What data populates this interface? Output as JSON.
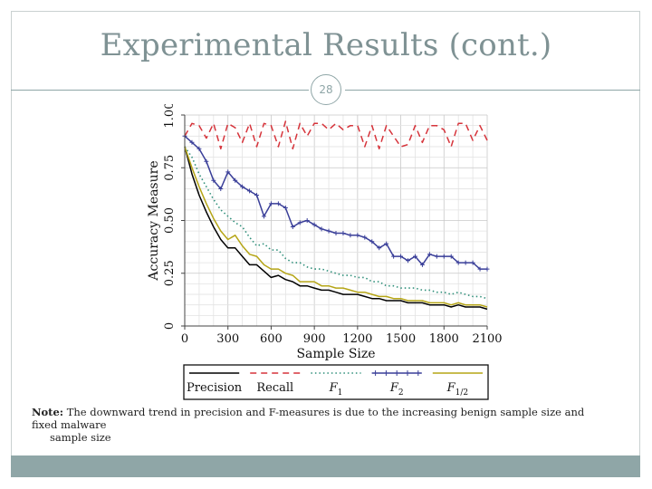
{
  "slide": {
    "title": "Experimental Results (cont.)",
    "number": "28",
    "note_lead": "Note:",
    "note_line1": "The downward trend in precision and F-measures is due to the increasing benign sample size and fixed malware",
    "note_line2": "sample size",
    "accent_color": "#8fa6a7"
  },
  "chart_data": {
    "type": "line",
    "xlabel": "Sample Size",
    "ylabel": "Accuracy Measure",
    "xlim": [
      0,
      2100
    ],
    "ylim": [
      0,
      1.0
    ],
    "xticks": [
      0,
      300,
      600,
      900,
      1200,
      1500,
      1800,
      2100
    ],
    "xtick_labels": [
      "0",
      "300",
      "600",
      "900",
      "1200",
      "1500",
      "1800",
      "2100"
    ],
    "yticks": [
      0,
      0.25,
      0.5,
      0.75,
      1.0
    ],
    "ytick_labels": [
      "0",
      "0.25",
      "0.50",
      "0.75",
      "1.00"
    ],
    "grid": true,
    "legend_position": "bottom",
    "x": [
      0,
      50,
      100,
      150,
      200,
      250,
      300,
      350,
      400,
      450,
      500,
      550,
      600,
      650,
      700,
      750,
      800,
      850,
      900,
      950,
      1000,
      1050,
      1100,
      1150,
      1200,
      1250,
      1300,
      1350,
      1400,
      1450,
      1500,
      1550,
      1600,
      1650,
      1700,
      1750,
      1800,
      1850,
      1900,
      1950,
      2000,
      2050,
      2100
    ],
    "series": [
      {
        "name": "Precision",
        "color": "#000000",
        "style": "solid",
        "values": [
          0.85,
          0.72,
          0.62,
          0.54,
          0.47,
          0.41,
          0.37,
          0.37,
          0.33,
          0.29,
          0.29,
          0.26,
          0.23,
          0.24,
          0.22,
          0.21,
          0.19,
          0.19,
          0.18,
          0.17,
          0.17,
          0.16,
          0.15,
          0.15,
          0.15,
          0.14,
          0.13,
          0.13,
          0.12,
          0.12,
          0.12,
          0.11,
          0.11,
          0.11,
          0.1,
          0.1,
          0.1,
          0.09,
          0.1,
          0.09,
          0.09,
          0.09,
          0.08
        ]
      },
      {
        "name": "Recall",
        "color": "#d6343b",
        "style": "dashed",
        "values": [
          0.9,
          0.96,
          0.95,
          0.89,
          0.96,
          0.84,
          0.96,
          0.94,
          0.87,
          0.96,
          0.85,
          0.96,
          0.95,
          0.85,
          0.97,
          0.84,
          0.96,
          0.9,
          0.96,
          0.96,
          0.93,
          0.96,
          0.93,
          0.95,
          0.95,
          0.85,
          0.95,
          0.84,
          0.95,
          0.9,
          0.85,
          0.86,
          0.95,
          0.87,
          0.95,
          0.95,
          0.93,
          0.85,
          0.96,
          0.96,
          0.88,
          0.95,
          0.88
        ]
      },
      {
        "name": "F_1",
        "label_main": "F",
        "label_sub": "1",
        "color": "#2f8f7a",
        "style": "dotted",
        "values": [
          0.85,
          0.8,
          0.72,
          0.66,
          0.6,
          0.55,
          0.52,
          0.49,
          0.47,
          0.42,
          0.38,
          0.39,
          0.36,
          0.36,
          0.32,
          0.3,
          0.3,
          0.28,
          0.27,
          0.27,
          0.26,
          0.25,
          0.24,
          0.24,
          0.23,
          0.23,
          0.21,
          0.21,
          0.19,
          0.19,
          0.18,
          0.18,
          0.18,
          0.17,
          0.17,
          0.16,
          0.16,
          0.15,
          0.16,
          0.15,
          0.14,
          0.14,
          0.13
        ]
      },
      {
        "name": "F_2",
        "label_main": "F",
        "label_sub": "2",
        "color": "#3a3f99",
        "style": "solid-markers",
        "values": [
          0.9,
          0.87,
          0.84,
          0.78,
          0.69,
          0.65,
          0.73,
          0.69,
          0.66,
          0.64,
          0.62,
          0.52,
          0.58,
          0.58,
          0.56,
          0.47,
          0.49,
          0.5,
          0.48,
          0.46,
          0.45,
          0.44,
          0.44,
          0.43,
          0.43,
          0.42,
          0.4,
          0.37,
          0.39,
          0.33,
          0.33,
          0.31,
          0.33,
          0.29,
          0.34,
          0.33,
          0.33,
          0.33,
          0.3,
          0.3,
          0.3,
          0.27,
          0.27
        ]
      },
      {
        "name": "F_1/2",
        "label_main": "F",
        "label_sub": "1/2",
        "color": "#b5a516",
        "style": "solid",
        "values": [
          0.85,
          0.75,
          0.66,
          0.58,
          0.51,
          0.45,
          0.41,
          0.43,
          0.38,
          0.34,
          0.33,
          0.29,
          0.27,
          0.27,
          0.25,
          0.24,
          0.21,
          0.21,
          0.21,
          0.19,
          0.19,
          0.18,
          0.18,
          0.17,
          0.16,
          0.16,
          0.15,
          0.14,
          0.14,
          0.13,
          0.13,
          0.12,
          0.12,
          0.12,
          0.11,
          0.11,
          0.11,
          0.1,
          0.11,
          0.1,
          0.1,
          0.1,
          0.09
        ]
      }
    ]
  }
}
